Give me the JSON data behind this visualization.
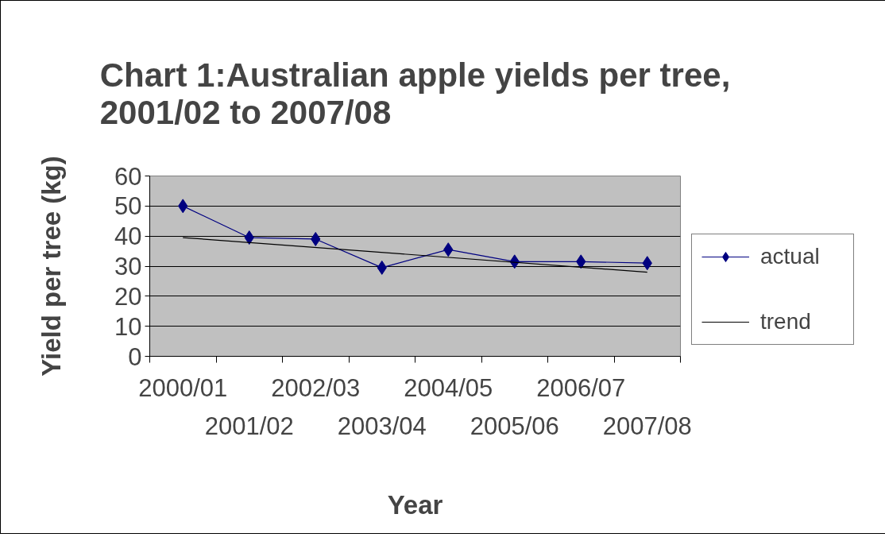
{
  "chart_data": {
    "type": "line",
    "title": "Chart 1:Australian apple yields per tree, 2001/02 to 2007/08",
    "xlabel": "Year",
    "ylabel": "Yield per tree (kg)",
    "categories": [
      "2000/01",
      "2001/02",
      "2002/03",
      "2003/04",
      "2004/05",
      "2005/06",
      "2006/07",
      "2007/08"
    ],
    "series": [
      {
        "name": "actual",
        "color": "#000080",
        "marker": "diamond",
        "line_style": "solid",
        "values": [
          50,
          39.5,
          39,
          29.5,
          35.5,
          31.5,
          31.5,
          31
        ]
      },
      {
        "name": "trend",
        "type": "line",
        "color": "#000000",
        "marker": "none",
        "line_style": "solid",
        "x": [
          "2000/01",
          "2007/08"
        ],
        "values": [
          39.5,
          28
        ]
      }
    ],
    "ylim": [
      0,
      60
    ],
    "yticks": [
      0,
      10,
      20,
      30,
      40,
      50,
      60
    ],
    "grid": "y",
    "legend": "right"
  }
}
